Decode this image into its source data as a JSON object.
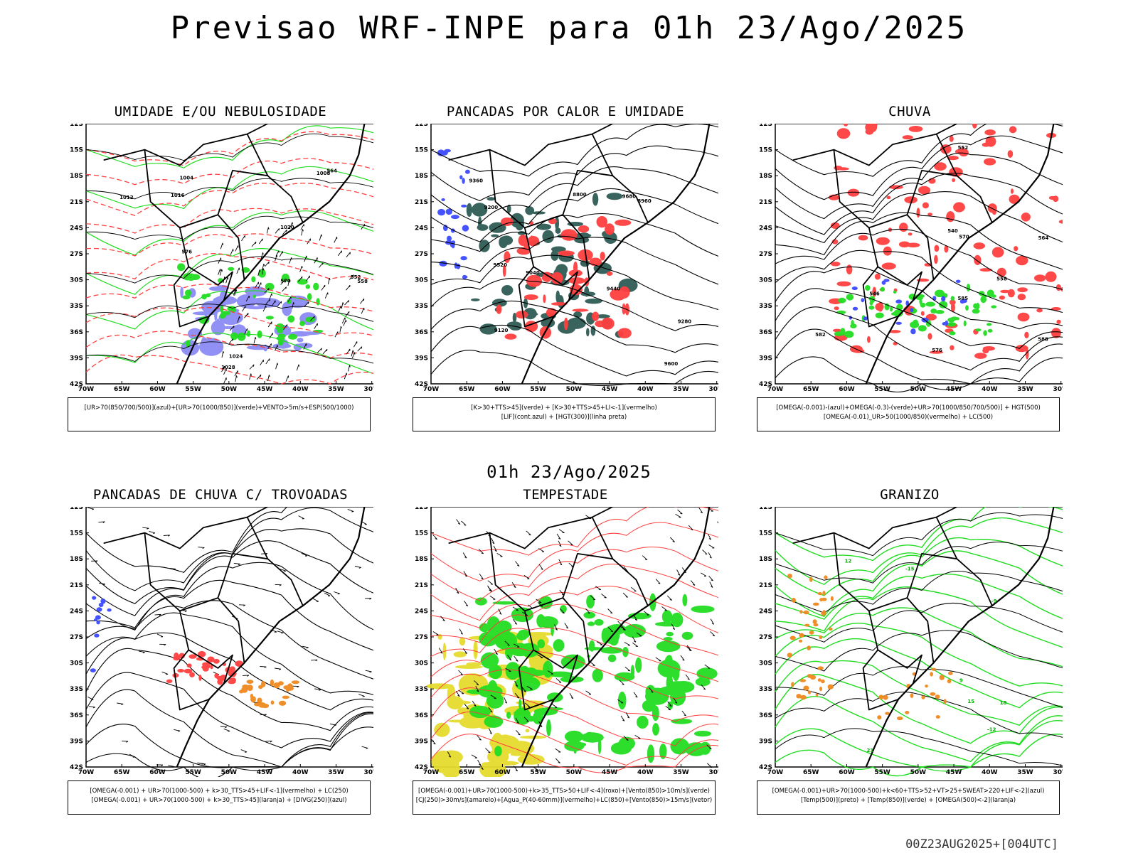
{
  "main_title": "Previsao WRF-INPE  para 01h 23/Ago/2025",
  "mid_title": "01h 23/Ago/2025",
  "footer": "00Z23AUG2025+[004UTC]",
  "lat_labels": [
    "12S",
    "15S",
    "18S",
    "21S",
    "24S",
    "27S",
    "30S",
    "33S",
    "36S",
    "39S",
    "42S"
  ],
  "lon_labels": [
    "70W",
    "65W",
    "60W",
    "55W",
    "50W",
    "45W",
    "40W",
    "35W",
    "30W"
  ],
  "colors": {
    "red": "#ff3f3f",
    "green": "#22dd22",
    "blue": "#3a4aff",
    "lavender": "#8c8cf5",
    "dark_teal": "#2f5b55",
    "yellow": "#e6dc2e",
    "orange": "#f08a1e",
    "contour": "#000000"
  },
  "panels": [
    {
      "title": "UMIDADE E/OU NEBULOSIDADE",
      "legend": [
        "[UR>70(850/700/500)](azul)+[UR>70(1000/850)](verde)+VENTO>5m/s+ESP(500/1000)"
      ],
      "labels": [
        "1012",
        "1016",
        "1020",
        "1024",
        "1008",
        "1028",
        "570",
        "576",
        "564",
        "558",
        "552",
        "1004"
      ]
    },
    {
      "title": "PANCADAS POR CALOR E UMIDADE",
      "legend": [
        "[K>30+TTS>45](verde) + [K>30+TTS>45+LI<-1](vermelho)",
        "[LIF](cont.azul) + [HGT(300)](linha preta)"
      ],
      "labels": [
        "9600",
        "9520",
        "9440",
        "9360",
        "9280",
        "9200",
        "9120",
        "9040",
        "8960",
        "8800",
        "9680"
      ]
    },
    {
      "title": "CHUVA",
      "legend": [
        "[OMEGA(-0.001)-(azul)+OMEGA(-0.3)-(verde)+UR>70(1000/850/700/500)] + HGT(500)",
        "[OMEGA(-0.01)_UR>50(1000/850)(vermelho) + LC(500)"
      ],
      "labels": [
        "585",
        "582",
        "576",
        "570",
        "564",
        "558",
        "552",
        "546",
        "540",
        "588"
      ]
    },
    {
      "title": "PANCADAS DE CHUVA C/ TROVOADAS",
      "legend": [
        "[OMEGA(-0.001) + UR>70(1000-500) + k>30_TTS>45+LIF<-1](vermelho) + LC(250)",
        "[OMEGA(-0.001) + UR>70(1000-500) + k>30_TTS>45](laranja) + [DIVG(250)](azul)"
      ],
      "labels": []
    },
    {
      "title": "TEMPESTADE",
      "legend": [
        "[OMEGA(-0.001)+UR>70(1000-500)+k>35_TTS>50+LIF<-4](roxo)+[Vento(850)>10m/s](verde)",
        "[CJ(250)>30m/s](amarelo)+[Agua_P(40-60mm)](vermelho)+LC(850)+[Vento(850)>15m/s](vetor)"
      ],
      "labels": []
    },
    {
      "title": "GRANIZO",
      "legend": [
        "[OMEGA(-0.001)+UR>70(1000-500)+k<60+TTS>52+VT>25+SWEAT>220+LIF<-2](azul)",
        "[Temp(500)](preto) + [Temp(850)](verde) + [OMEGA(500)<-2](laranja)"
      ],
      "labels": [
        "-15",
        "-12",
        "-9",
        "15",
        "12",
        "9",
        "18",
        "21"
      ]
    }
  ]
}
